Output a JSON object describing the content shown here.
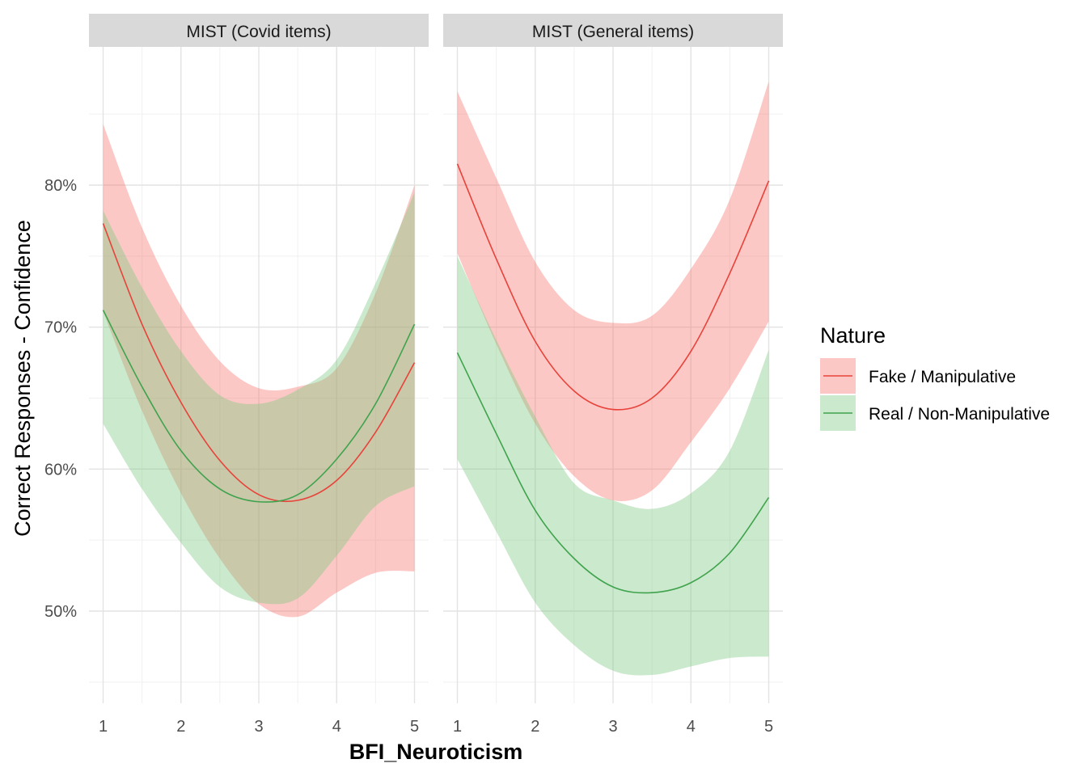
{
  "chart_data": {
    "type": "line",
    "subtype": "faceted line with confidence ribbons",
    "xlabel": "BFI_Neuroticism",
    "ylabel": "Correct Responses - Confidence",
    "xlim": [
      1,
      5
    ],
    "ylim": [
      0.45,
      0.89
    ],
    "x_ticks": [
      1,
      2,
      3,
      4,
      5
    ],
    "x_tick_labels": [
      "1",
      "2",
      "3",
      "4",
      "5"
    ],
    "y_ticks": [
      0.5,
      0.6,
      0.7,
      0.8
    ],
    "y_tick_labels": [
      "50%",
      "60%",
      "70%",
      "80%"
    ],
    "grid": true,
    "legend": {
      "title": "Nature",
      "placement": "right",
      "entries": [
        "Fake / Manipulative",
        "Real / Non-Manipulative"
      ]
    },
    "colors": {
      "Fake / Manipulative": "#e8423a",
      "Real / Non-Manipulative": "#3fa34d",
      "Fake / Manipulative ribbon": "#f8766d",
      "Real / Non-Manipulative ribbon": "#7cc87f"
    },
    "x": [
      1,
      1.5,
      2,
      2.5,
      3,
      3.5,
      4,
      4.5,
      5
    ],
    "panels": [
      {
        "title": "MIST (Covid items)",
        "series": [
          {
            "name": "Fake / Manipulative",
            "y": [
              0.773,
              0.702,
              0.647,
              0.606,
              0.582,
              0.578,
              0.592,
              0.626,
              0.675
            ],
            "lower": [
              0.711,
              0.641,
              0.583,
              0.537,
              0.505,
              0.496,
              0.513,
              0.527,
              0.528
            ],
            "upper": [
              0.843,
              0.77,
              0.715,
              0.676,
              0.657,
              0.658,
              0.671,
              0.724,
              0.8
            ]
          },
          {
            "name": "Real / Non-Manipulative",
            "y": [
              0.712,
              0.658,
              0.613,
              0.586,
              0.577,
              0.582,
              0.607,
              0.646,
              0.702
            ],
            "lower": [
              0.632,
              0.586,
              0.548,
              0.517,
              0.506,
              0.509,
              0.539,
              0.574,
              0.588
            ],
            "upper": [
              0.782,
              0.728,
              0.683,
              0.652,
              0.646,
              0.656,
              0.677,
              0.731,
              0.795
            ]
          }
        ]
      },
      {
        "title": "MIST (General items)",
        "series": [
          {
            "name": "Fake / Manipulative",
            "y": [
              0.815,
              0.748,
              0.69,
              0.655,
              0.642,
              0.65,
              0.683,
              0.738,
              0.803
            ],
            "lower": [
              0.752,
              0.688,
              0.632,
              0.595,
              0.578,
              0.585,
              0.619,
              0.657,
              0.704
            ],
            "upper": [
              0.866,
              0.805,
              0.746,
              0.712,
              0.703,
              0.708,
              0.741,
              0.79,
              0.873
            ]
          },
          {
            "name": "Real / Non-Manipulative",
            "y": [
              0.682,
              0.625,
              0.571,
              0.537,
              0.517,
              0.513,
              0.52,
              0.541,
              0.58
            ],
            "lower": [
              0.607,
              0.556,
              0.506,
              0.476,
              0.458,
              0.455,
              0.461,
              0.467,
              0.468
            ],
            "upper": [
              0.75,
              0.691,
              0.637,
              0.59,
              0.578,
              0.572,
              0.583,
              0.613,
              0.684
            ]
          }
        ]
      }
    ]
  }
}
